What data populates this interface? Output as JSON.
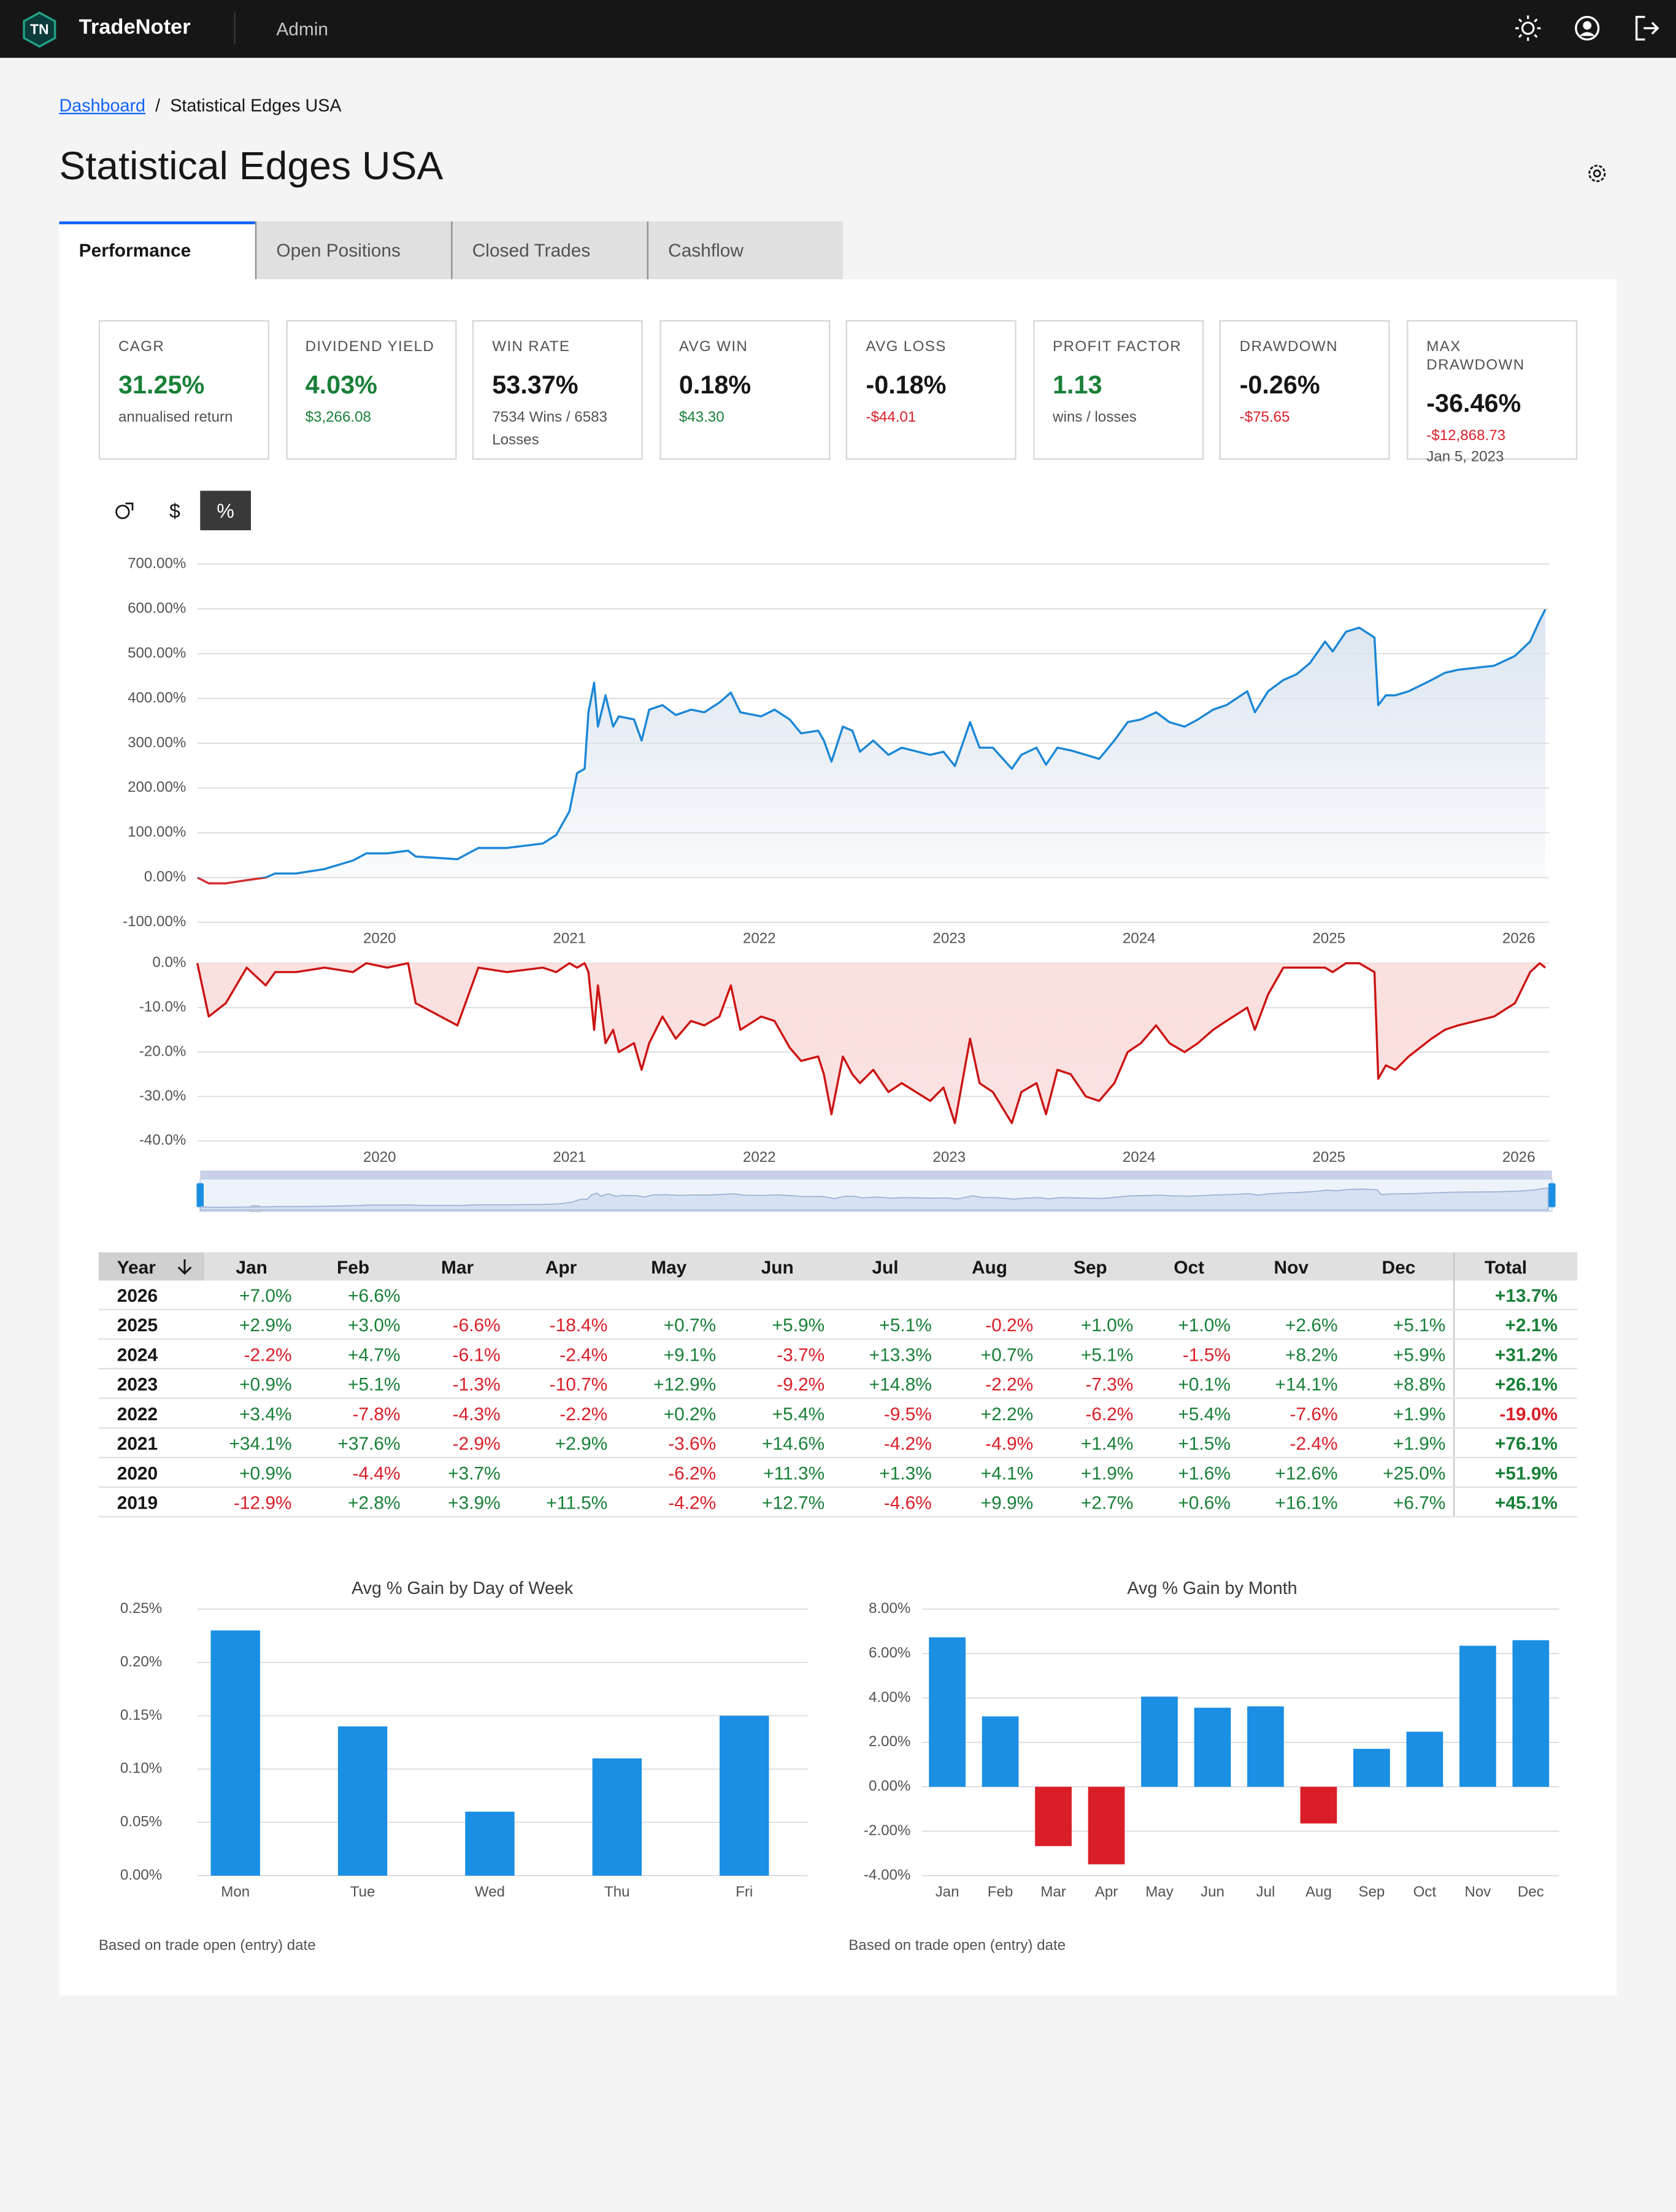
{
  "header": {
    "logo": "TN",
    "app_name": "TradeNoter",
    "role": "Admin"
  },
  "breadcrumb": {
    "link": "Dashboard",
    "separator": "/",
    "current": "Statistical Edges USA"
  },
  "page_title": "Statistical Edges USA",
  "tabs": {
    "items": [
      "Performance",
      "Open Positions",
      "Closed Trades",
      "Cashflow"
    ],
    "active": 0
  },
  "stats": [
    {
      "label": "CAGR",
      "value": "31.25%",
      "value_color": "#198038",
      "sub": "annualised return",
      "sub_color": "#525252"
    },
    {
      "label": "DIVIDEND YIELD",
      "value": "4.03%",
      "value_color": "#198038",
      "sub": "$3,266.08",
      "sub_color": "#198038"
    },
    {
      "label": "WIN RATE",
      "value": "53.37%",
      "value_color": "#161616",
      "sub": "7534 Wins / 6583 Losses",
      "sub_color": "#525252"
    },
    {
      "label": "AVG WIN",
      "value": "0.18%",
      "value_color": "#161616",
      "sub": "$43.30",
      "sub_color": "#198038"
    },
    {
      "label": "AVG LOSS",
      "value": "-0.18%",
      "value_color": "#161616",
      "sub": "-$44.01",
      "sub_color": "#da1e28"
    },
    {
      "label": "PROFIT FACTOR",
      "value": "1.13",
      "value_color": "#198038",
      "sub": "wins / losses",
      "sub_color": "#525252"
    },
    {
      "label": "DRAWDOWN",
      "value": "-0.26%",
      "value_color": "#161616",
      "sub": "-$75.65",
      "sub_color": "#da1e28"
    },
    {
      "label": "MAX DRAWDOWN",
      "value": "-36.46%",
      "value_color": "#161616",
      "sub": "-$12,868.73",
      "sub_color": "#da1e28",
      "extra": "Jan 5, 2023"
    }
  ],
  "chart_toggle": {
    "items": [
      "$",
      "%"
    ],
    "active": 1
  },
  "chart_data": [
    {
      "type": "line",
      "area": true,
      "x": [
        2019.04,
        2019.1,
        2019.19,
        2019.3,
        2019.4,
        2019.45,
        2019.56,
        2019.71,
        2019.86,
        2019.93,
        2020.04,
        2020.15,
        2020.19,
        2020.41,
        2020.52,
        2020.67,
        2020.86,
        2020.93,
        2021,
        2021.04,
        2021.08,
        2021.1,
        2021.13,
        2021.15,
        2021.19,
        2021.23,
        2021.26,
        2021.34,
        2021.38,
        2021.42,
        2021.49,
        2021.56,
        2021.64,
        2021.71,
        2021.79,
        2021.85,
        2021.9,
        2022.01,
        2022.08,
        2022.16,
        2022.22,
        2022.31,
        2022.34,
        2022.38,
        2022.44,
        2022.49,
        2022.53,
        2022.6,
        2022.68,
        2022.75,
        2022.9,
        2022.97,
        2023.03,
        2023.11,
        2023.16,
        2023.23,
        2023.33,
        2023.38,
        2023.46,
        2023.51,
        2023.57,
        2023.64,
        2023.72,
        2023.79,
        2023.87,
        2023.94,
        2024.01,
        2024.09,
        2024.16,
        2024.24,
        2024.31,
        2024.39,
        2024.46,
        2024.57,
        2024.61,
        2024.68,
        2024.76,
        2024.83,
        2024.9,
        2024.98,
        2025.02,
        2025.09,
        2025.16,
        2025.24,
        2025.26,
        2025.3,
        2025.35,
        2025.42,
        2025.54,
        2025.61,
        2025.68,
        2025.87,
        2025.98,
        2026.06,
        2026.11,
        2026.14
      ],
      "series": [
        {
          "color": "#1b87d6",
          "negative_color": "#d32f2f",
          "area_color": "#d9e3ee",
          "values": [
            0,
            -13,
            -13,
            -6,
            0,
            9,
            9,
            19,
            38,
            54,
            54,
            60,
            47,
            41,
            66,
            66,
            76,
            95,
            148,
            233,
            243,
            369,
            435,
            337,
            407,
            337,
            360,
            353,
            306,
            375,
            385,
            363,
            375,
            369,
            391,
            413,
            369,
            360,
            375,
            353,
            322,
            328,
            306,
            259,
            337,
            328,
            281,
            306,
            274,
            290,
            274,
            281,
            249,
            347,
            290,
            290,
            243,
            274,
            290,
            252,
            290,
            284,
            274,
            265,
            306,
            347,
            353,
            369,
            347,
            337,
            353,
            375,
            385,
            416,
            369,
            416,
            441,
            454,
            479,
            527,
            505,
            549,
            558,
            536,
            385,
            407,
            407,
            416,
            441,
            457,
            464,
            473,
            495,
            527,
            574,
            599
          ]
        }
      ],
      "xlim": [
        2019.04,
        2026.16
      ],
      "xticks": [
        2020,
        2021,
        2022,
        2023,
        2024,
        2025,
        2026
      ],
      "ylim": [
        -100,
        700
      ],
      "yticks": [
        {
          "value": -100,
          "label": "-100.00%"
        },
        {
          "value": 0,
          "label": "0.00%"
        },
        {
          "value": 100,
          "label": "100.00%"
        },
        {
          "value": 200,
          "label": "200.00%"
        },
        {
          "value": 300,
          "label": "300.00%"
        },
        {
          "value": 400,
          "label": "400.00%"
        },
        {
          "value": 500,
          "label": "500.00%"
        },
        {
          "value": 600,
          "label": "600.00%"
        },
        {
          "value": 700,
          "label": "700.00%"
        }
      ],
      "grid": true
    },
    {
      "type": "line",
      "area": true,
      "x": [
        2019.04,
        2019.1,
        2019.19,
        2019.3,
        2019.4,
        2019.45,
        2019.56,
        2019.71,
        2019.86,
        2019.93,
        2020.04,
        2020.15,
        2020.19,
        2020.41,
        2020.52,
        2020.67,
        2020.86,
        2020.93,
        2021,
        2021.04,
        2021.08,
        2021.1,
        2021.13,
        2021.15,
        2021.19,
        2021.23,
        2021.26,
        2021.34,
        2021.38,
        2021.42,
        2021.49,
        2021.56,
        2021.64,
        2021.71,
        2021.79,
        2021.85,
        2021.9,
        2022.01,
        2022.08,
        2022.16,
        2022.22,
        2022.31,
        2022.34,
        2022.38,
        2022.44,
        2022.49,
        2022.53,
        2022.6,
        2022.68,
        2022.75,
        2022.9,
        2022.97,
        2023.03,
        2023.11,
        2023.16,
        2023.23,
        2023.33,
        2023.38,
        2023.46,
        2023.51,
        2023.57,
        2023.64,
        2023.72,
        2023.79,
        2023.87,
        2023.94,
        2024.01,
        2024.09,
        2024.16,
        2024.24,
        2024.31,
        2024.39,
        2024.46,
        2024.57,
        2024.61,
        2024.68,
        2024.76,
        2024.83,
        2024.9,
        2024.98,
        2025.02,
        2025.09,
        2025.16,
        2025.24,
        2025.26,
        2025.3,
        2025.35,
        2025.42,
        2025.54,
        2025.61,
        2025.68,
        2025.87,
        2025.98,
        2026.06,
        2026.11,
        2026.14
      ],
      "series": [
        {
          "color": "#cc1414",
          "area_color": "#fbdede",
          "values": [
            0,
            -12,
            -9,
            -1,
            -5,
            -2,
            -2,
            -1,
            -2,
            0,
            -1,
            0,
            -9,
            -14,
            -1,
            -2,
            -1,
            -2,
            0,
            -1,
            0,
            -2,
            -15,
            -5,
            -18,
            -15,
            -20,
            -18,
            -24,
            -18,
            -12,
            -17,
            -13,
            -14,
            -12,
            -5,
            -15,
            -12,
            -13,
            -19,
            -22,
            -21,
            -25,
            -34,
            -21,
            -25,
            -27,
            -24,
            -29,
            -27,
            -31,
            -28,
            -36,
            -17,
            -27,
            -29,
            -36,
            -29,
            -27,
            -34,
            -24,
            -25,
            -30,
            -31,
            -27,
            -20,
            -18,
            -14,
            -18,
            -20,
            -18,
            -15,
            -13,
            -10,
            -15,
            -7,
            -1,
            -1,
            -1,
            -1,
            -2,
            0,
            0,
            -2,
            -26,
            -23,
            -24,
            -21,
            -17,
            -15,
            -14,
            -12,
            -9,
            -2,
            0,
            -1
          ]
        }
      ],
      "xlim": [
        2019.04,
        2026.16
      ],
      "xticks": [
        2020,
        2021,
        2022,
        2023,
        2024,
        2025,
        2026
      ],
      "ylim": [
        -40,
        0
      ],
      "yticks": [
        {
          "value": -40,
          "label": "-40.0%"
        },
        {
          "value": -30,
          "label": "-30.0%"
        },
        {
          "value": -20,
          "label": "-20.0%"
        },
        {
          "value": -10,
          "label": "-10.0%"
        },
        {
          "value": 0,
          "label": "0.0%"
        }
      ],
      "grid": true
    },
    {
      "type": "bar",
      "title": "Avg % Gain by Day of Week",
      "categories": [
        "Mon",
        "Tue",
        "Wed",
        "Thu",
        "Fri"
      ],
      "values": [
        0.23,
        0.14,
        0.06,
        0.11,
        0.15
      ],
      "color": "#1a8fe3",
      "ylim": [
        0,
        0.25
      ],
      "yticks": [
        {
          "value": 0,
          "label": "0.00%"
        },
        {
          "value": 0.05,
          "label": "0.05%"
        },
        {
          "value": 0.1,
          "label": "0.10%"
        },
        {
          "value": 0.15,
          "label": "0.15%"
        },
        {
          "value": 0.2,
          "label": "0.20%"
        },
        {
          "value": 0.25,
          "label": "0.25%"
        }
      ],
      "grid": true,
      "note": "Based on trade open (entry) date"
    },
    {
      "type": "bar",
      "title": "Avg % Gain by Month",
      "categories": [
        "Jan",
        "Feb",
        "Mar",
        "Apr",
        "May",
        "Jun",
        "Jul",
        "Aug",
        "Sep",
        "Oct",
        "Nov",
        "Dec"
      ],
      "values": [
        6.73,
        3.17,
        -2.67,
        -3.49,
        4.06,
        3.56,
        3.62,
        -1.65,
        1.71,
        2.48,
        6.35,
        6.6
      ],
      "color": "#1a8fe3",
      "negative_color": "#da1e28",
      "ylim": [
        -4,
        8
      ],
      "yticks": [
        {
          "value": -4,
          "label": "-4.00%"
        },
        {
          "value": -2,
          "label": "-2.00%"
        },
        {
          "value": 0,
          "label": "0.00%"
        },
        {
          "value": 2,
          "label": "2.00%"
        },
        {
          "value": 4,
          "label": "4.00%"
        },
        {
          "value": 6,
          "label": "6.00%"
        },
        {
          "value": 8,
          "label": "8.00%"
        }
      ],
      "grid": true,
      "note": "Based on trade open (entry) date"
    }
  ],
  "monthly_returns": {
    "headers": [
      "Year",
      "Jan",
      "Feb",
      "Mar",
      "Apr",
      "May",
      "Jun",
      "Jul",
      "Aug",
      "Sep",
      "Oct",
      "Nov",
      "Dec",
      "Total"
    ],
    "sort_column": 0,
    "positive_color": "#198038",
    "negative_color": "#da1e28",
    "rows": [
      [
        "2026",
        "+7.0%",
        "+6.6%",
        null,
        null,
        null,
        null,
        null,
        null,
        null,
        null,
        null,
        null,
        "+13.7%"
      ],
      [
        "2025",
        "+2.9%",
        "+3.0%",
        "-6.6%",
        "-18.4%",
        "+0.7%",
        "+5.9%",
        "+5.1%",
        "-0.2%",
        "+1.0%",
        "+1.0%",
        "+2.6%",
        "+5.1%",
        "+2.1%"
      ],
      [
        "2024",
        "-2.2%",
        "+4.7%",
        "-6.1%",
        "-2.4%",
        "+9.1%",
        "-3.7%",
        "+13.3%",
        "+0.7%",
        "+5.1%",
        "-1.5%",
        "+8.2%",
        "+5.9%",
        "+31.2%"
      ],
      [
        "2023",
        "+0.9%",
        "+5.1%",
        "-1.3%",
        "-10.7%",
        "+12.9%",
        "-9.2%",
        "+14.8%",
        "-2.2%",
        "-7.3%",
        "+0.1%",
        "+14.1%",
        "+8.8%",
        "+26.1%"
      ],
      [
        "2022",
        "+3.4%",
        "-7.8%",
        "-4.3%",
        "-2.2%",
        "+0.2%",
        "+5.4%",
        "-9.5%",
        "+2.2%",
        "-6.2%",
        "+5.4%",
        "-7.6%",
        "+1.9%",
        "-19.0%"
      ],
      [
        "2021",
        "+34.1%",
        "+37.6%",
        "-2.9%",
        "+2.9%",
        "-3.6%",
        "+14.6%",
        "-4.2%",
        "-4.9%",
        "+1.4%",
        "+1.5%",
        "-2.4%",
        "+1.9%",
        "+76.1%"
      ],
      [
        "2020",
        "+0.9%",
        "-4.4%",
        "+3.7%",
        null,
        "-6.2%",
        "+11.3%",
        "+1.3%",
        "+4.1%",
        "+1.9%",
        "+1.6%",
        "+12.6%",
        "+25.0%",
        "+51.9%"
      ],
      [
        "2019",
        "-12.9%",
        "+2.8%",
        "+3.9%",
        "+11.5%",
        "-4.2%",
        "+12.7%",
        "-4.6%",
        "+9.9%",
        "+2.7%",
        "+0.6%",
        "+16.1%",
        "+6.7%",
        "+45.1%"
      ]
    ]
  }
}
